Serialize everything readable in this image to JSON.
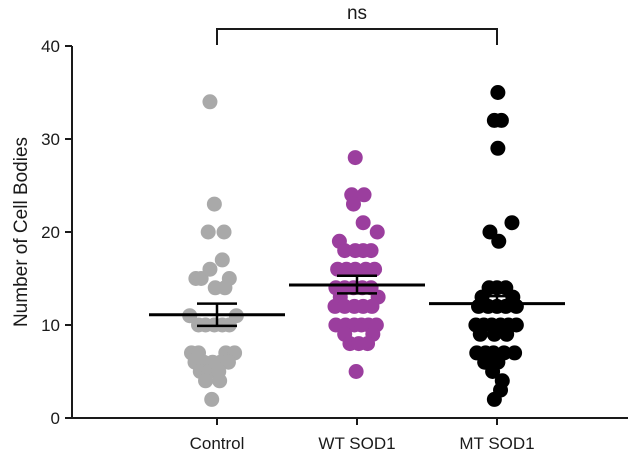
{
  "chart_data": {
    "type": "scatter",
    "subtype": "dot-plot-with-mean-sem",
    "title": "",
    "xlabel": "",
    "ylabel": "Number of Cell Bodies",
    "ylim": [
      0,
      40
    ],
    "yticks": [
      0,
      10,
      20,
      30,
      40
    ],
    "categories": [
      "Control",
      "WT SOD1",
      "MT SOD1"
    ],
    "annotation": {
      "text": "ns",
      "from": "Control",
      "to": "MT SOD1"
    },
    "series": [
      {
        "category": "Control",
        "color": "#a9a9a9",
        "mean": 11.1,
        "sem_upper": 12.3,
        "sem_lower": 9.9,
        "points": [
          [
            -0.08,
            34
          ],
          [
            -0.03,
            23
          ],
          [
            -0.1,
            20
          ],
          [
            0.08,
            20
          ],
          [
            0.06,
            17
          ],
          [
            -0.24,
            15
          ],
          [
            -0.18,
            15
          ],
          [
            -0.08,
            16
          ],
          [
            0.14,
            15
          ],
          [
            -0.02,
            14
          ],
          [
            0.09,
            14
          ],
          [
            -0.31,
            11
          ],
          [
            -0.21,
            10
          ],
          [
            -0.13,
            10
          ],
          [
            -0.03,
            10
          ],
          [
            0.06,
            10
          ],
          [
            0.14,
            10
          ],
          [
            0.22,
            11
          ],
          [
            -0.29,
            7
          ],
          [
            -0.21,
            7
          ],
          [
            0.1,
            7
          ],
          [
            0.2,
            7
          ],
          [
            -0.25,
            6
          ],
          [
            -0.15,
            6
          ],
          [
            -0.05,
            6
          ],
          [
            0.04,
            6
          ],
          [
            0.13,
            6
          ],
          [
            -0.19,
            5
          ],
          [
            -0.09,
            5
          ],
          [
            0.02,
            5
          ],
          [
            -0.13,
            4
          ],
          [
            0.03,
            4
          ],
          [
            -0.06,
            2
          ]
        ]
      },
      {
        "category": "WT SOD1",
        "color": "#9b3e9e",
        "mean": 14.3,
        "sem_upper": 15.3,
        "sem_lower": 13.4,
        "points": [
          [
            -0.02,
            28
          ],
          [
            -0.06,
            24
          ],
          [
            0.08,
            24
          ],
          [
            -0.04,
            23
          ],
          [
            0.07,
            21
          ],
          [
            0.23,
            20
          ],
          [
            -0.2,
            19
          ],
          [
            -0.14,
            18
          ],
          [
            -0.02,
            18
          ],
          [
            0.07,
            18
          ],
          [
            0.16,
            18
          ],
          [
            -0.22,
            16
          ],
          [
            -0.12,
            16
          ],
          [
            -0.02,
            16
          ],
          [
            0.1,
            16
          ],
          [
            0.2,
            16
          ],
          [
            -0.24,
            14
          ],
          [
            -0.14,
            14
          ],
          [
            -0.04,
            14
          ],
          [
            0.06,
            14
          ],
          [
            0.16,
            14
          ],
          [
            -0.19,
            13
          ],
          [
            0.24,
            13
          ],
          [
            -0.25,
            12
          ],
          [
            -0.14,
            12
          ],
          [
            -0.03,
            12
          ],
          [
            0.07,
            12
          ],
          [
            0.17,
            12
          ],
          [
            -0.24,
            10
          ],
          [
            -0.13,
            10
          ],
          [
            -0.03,
            10
          ],
          [
            0.05,
            10
          ],
          [
            0.13,
            10
          ],
          [
            0.22,
            10
          ],
          [
            -0.14,
            9
          ],
          [
            0.18,
            9
          ],
          [
            -0.08,
            8
          ],
          [
            0.02,
            8
          ],
          [
            0.12,
            8
          ],
          [
            -0.01,
            5
          ]
        ]
      },
      {
        "category": "MT SOD1",
        "color": "#000000",
        "mean": 12.3,
        "sem_upper": 13.1,
        "sem_lower": 11.5,
        "points": [
          [
            0.01,
            35
          ],
          [
            -0.03,
            32
          ],
          [
            0.05,
            32
          ],
          [
            0.01,
            29
          ],
          [
            0.17,
            21
          ],
          [
            -0.08,
            20
          ],
          [
            0.02,
            19
          ],
          [
            -0.09,
            14
          ],
          [
            0.0,
            14
          ],
          [
            0.1,
            14
          ],
          [
            -0.17,
            13
          ],
          [
            0.18,
            13
          ],
          [
            -0.21,
            12
          ],
          [
            -0.1,
            12
          ],
          [
            0.0,
            12
          ],
          [
            0.1,
            12
          ],
          [
            0.22,
            12
          ],
          [
            -0.24,
            10
          ],
          [
            -0.15,
            10
          ],
          [
            -0.06,
            10
          ],
          [
            0.04,
            10
          ],
          [
            0.13,
            10
          ],
          [
            0.22,
            10
          ],
          [
            -0.19,
            9
          ],
          [
            -0.03,
            9
          ],
          [
            0.11,
            9
          ],
          [
            -0.23,
            7
          ],
          [
            -0.13,
            7
          ],
          [
            -0.04,
            7
          ],
          [
            0.08,
            7
          ],
          [
            0.2,
            7
          ],
          [
            -0.14,
            6
          ],
          [
            0.01,
            6
          ],
          [
            -0.05,
            5
          ],
          [
            0.06,
            4
          ],
          [
            0.04,
            3
          ],
          [
            -0.03,
            2
          ]
        ]
      }
    ]
  }
}
